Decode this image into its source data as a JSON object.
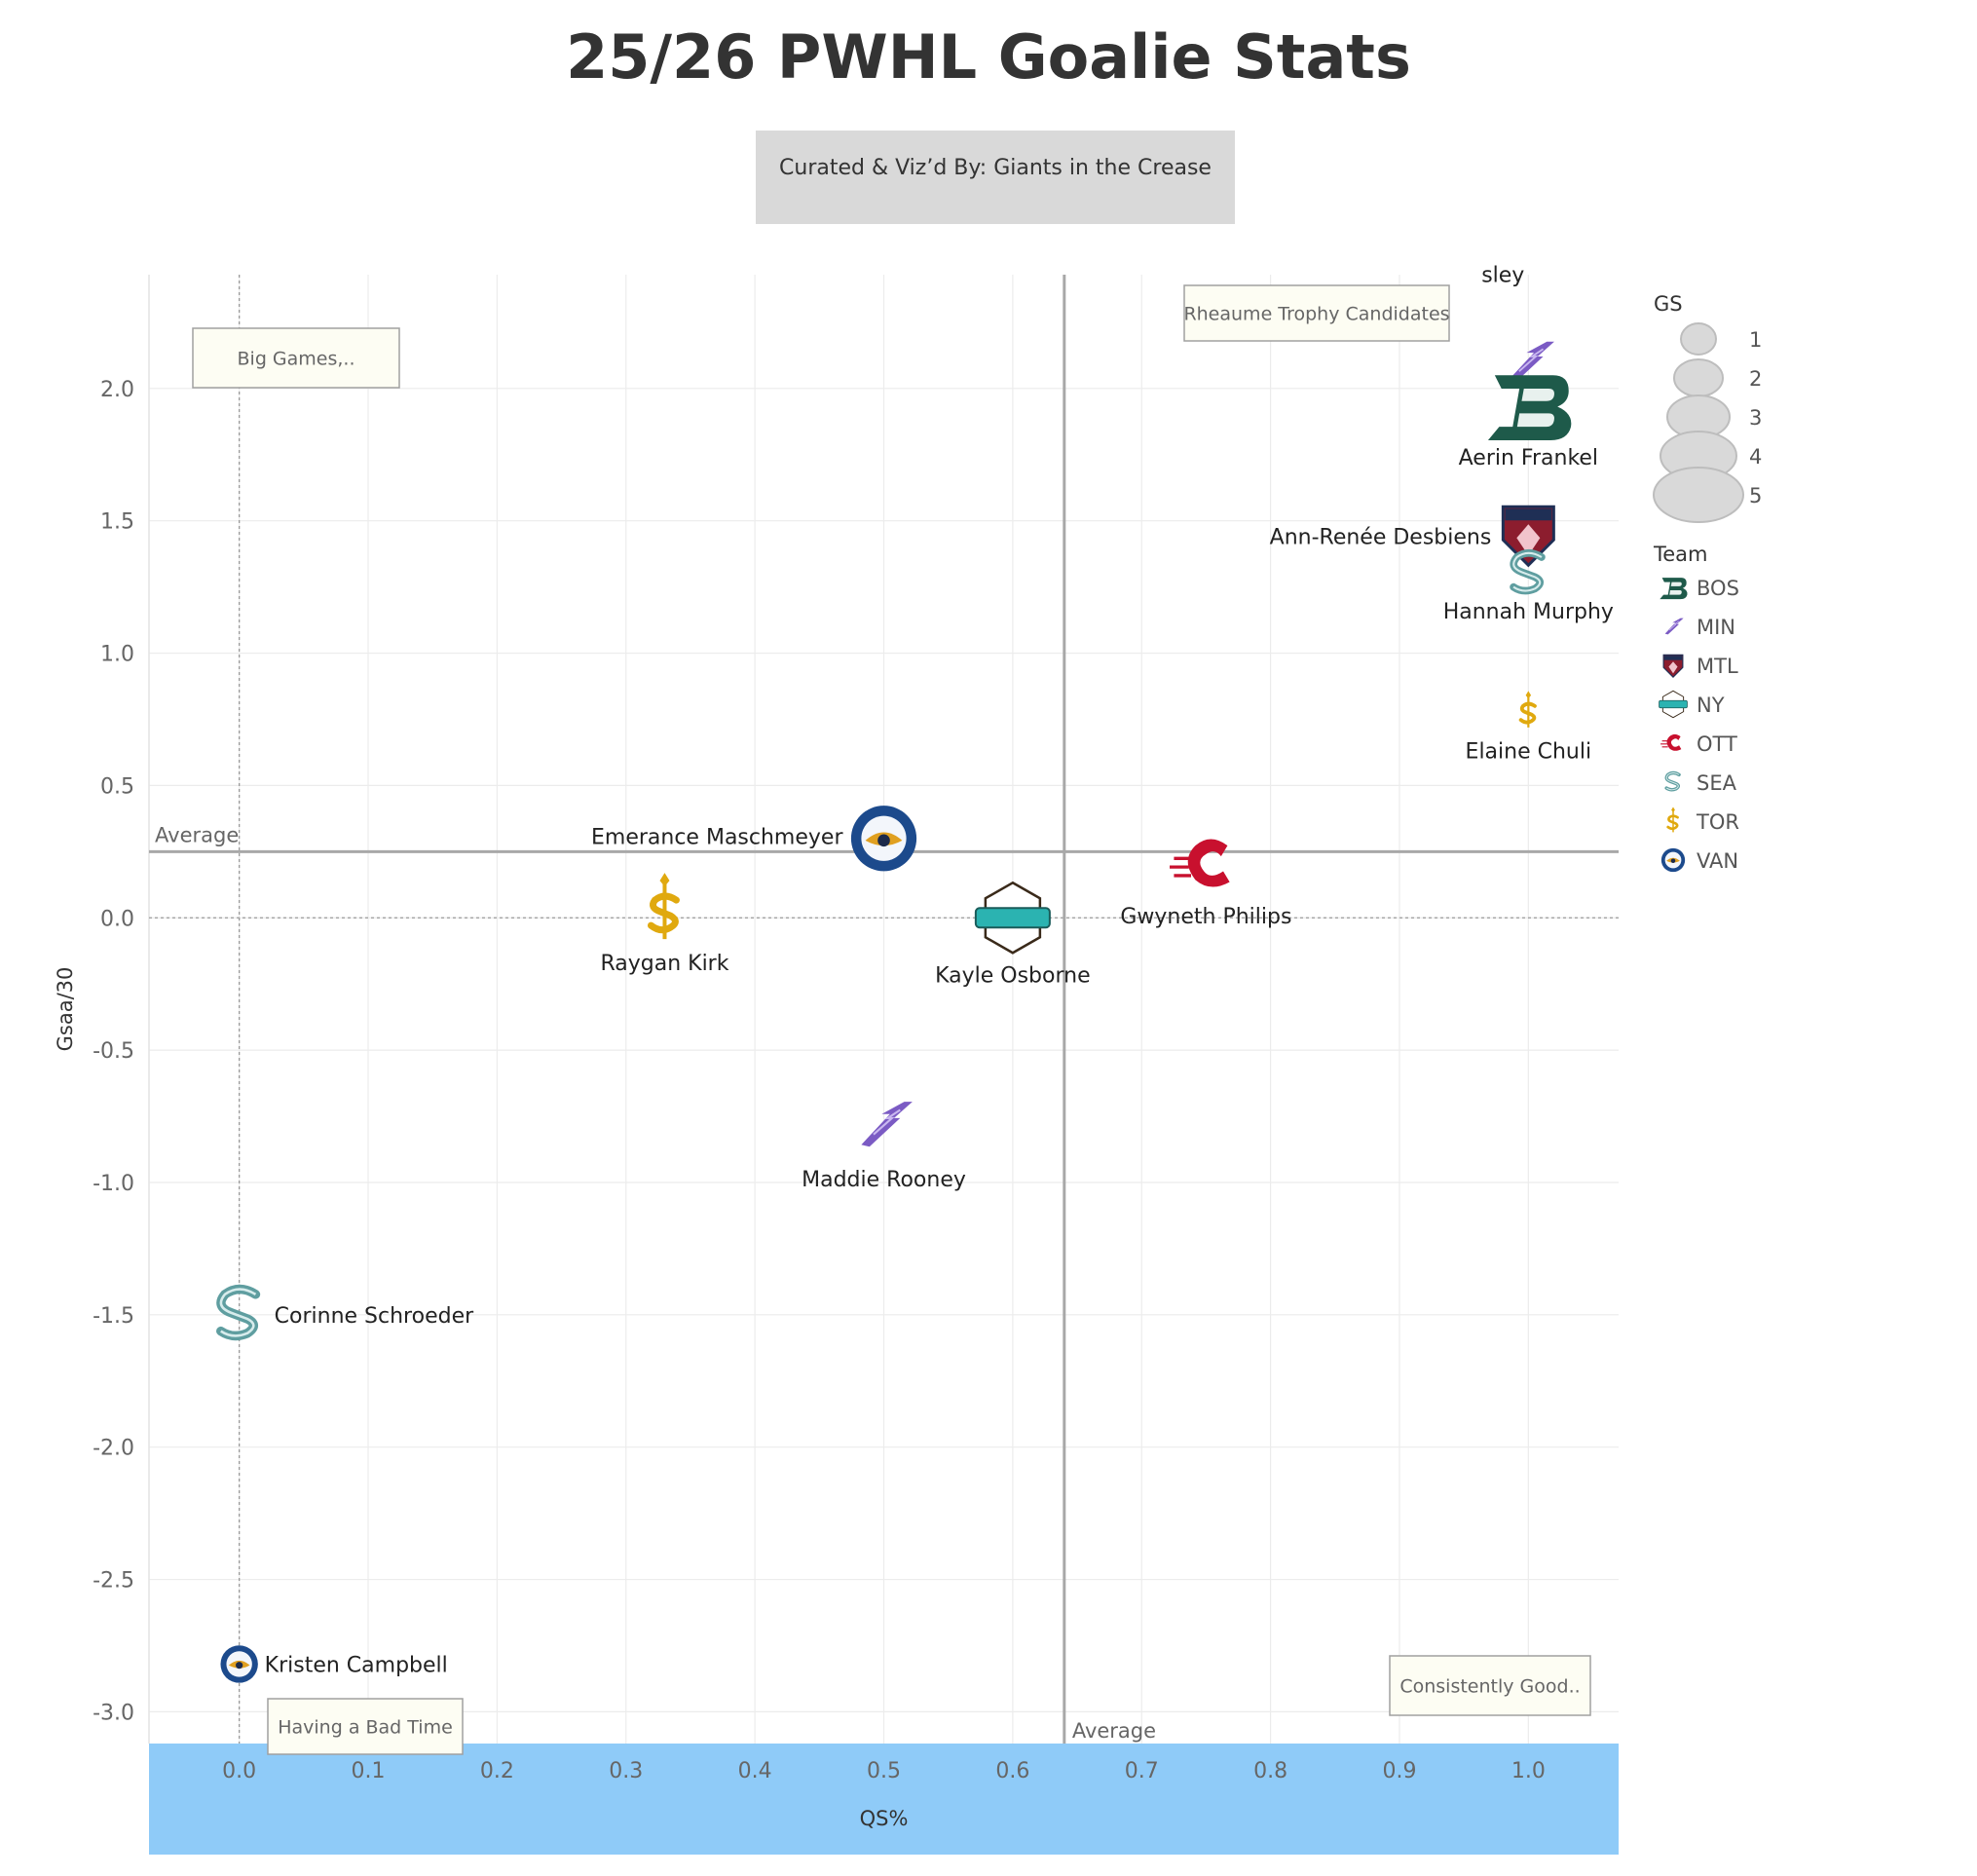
{
  "title": "25/26 PWHL Goalie Stats",
  "credit": "Curated & Viz’d By: Giants in the Crease",
  "colors": {
    "axis_band": "#8fcbf8",
    "note_fill": "#fdfdf3",
    "BOS": "#1e5a4a",
    "MIN": "#7b5bc4",
    "MTL": "#8c1d2e",
    "NY": "#2bb3b1",
    "OTT": "#c8102e",
    "SEA": "#5f9ea0",
    "TOR": "#e0a90f",
    "VAN": "#1c4a8c"
  },
  "chart_data": {
    "type": "scatter",
    "title": "25/26 PWHL Goalie Stats",
    "xlabel": "QS%",
    "ylabel": "Gsaa/30",
    "xlim": [
      -0.07,
      1.07
    ],
    "ylim": [
      -3.12,
      2.43
    ],
    "x_ticks": [
      "0.0",
      "0.1",
      "0.2",
      "0.3",
      "0.4",
      "0.5",
      "0.6",
      "0.7",
      "0.8",
      "0.9",
      "1.0"
    ],
    "y_ticks": [
      "2.0",
      "1.5",
      "1.0",
      "0.5",
      "0.0",
      "-0.5",
      "-1.0",
      "-1.5",
      "-2.0",
      "-2.5",
      "-3.0"
    ],
    "grid": true,
    "reference_lines": [
      {
        "axis": "x",
        "value": 0.64,
        "label": "Average"
      },
      {
        "axis": "y",
        "value": 0.25,
        "label": "Average"
      }
    ],
    "quadrant_labels": {
      "top_left": "Big Games,..",
      "top_right": "Rheaume Trophy Candidates",
      "bottom_left": "Having a Bad Time",
      "bottom_right": "Consistently Good.."
    },
    "points": [
      {
        "name": "Nicole Hensley",
        "display_label": "sley",
        "team": "MIN",
        "x": 1.0,
        "y": 2.1
      },
      {
        "name": "Aerin Frankel",
        "team": "BOS",
        "x": 1.0,
        "y": 1.94
      },
      {
        "name": "Ann-Renée Desbiens",
        "team": "MTL",
        "x": 1.0,
        "y": 1.45
      },
      {
        "name": "Hannah Murphy",
        "team": "SEA",
        "x": 1.0,
        "y": 1.3
      },
      {
        "name": "Elaine Chuli",
        "team": "TOR",
        "x": 1.0,
        "y": 0.78
      },
      {
        "name": "Emerance Maschmeyer",
        "team": "VAN",
        "x": 0.5,
        "y": 0.3
      },
      {
        "name": "Gwyneth Philips",
        "team": "OTT",
        "x": 0.75,
        "y": 0.2
      },
      {
        "name": "Raygan Kirk",
        "team": "TOR",
        "x": 0.33,
        "y": 0.03
      },
      {
        "name": "Kayle Osborne",
        "team": "NY",
        "x": 0.6,
        "y": 0.0
      },
      {
        "name": "Maddie Rooney",
        "team": "MIN",
        "x": 0.5,
        "y": -0.78
      },
      {
        "name": "Corinne Schroeder",
        "team": "SEA",
        "x": 0.0,
        "y": -1.5
      },
      {
        "name": "Kristen Campbell",
        "team": "VAN",
        "x": 0.0,
        "y": -2.82
      }
    ],
    "legend_size": {
      "title": "GS",
      "values": [
        1,
        2,
        3,
        4,
        5
      ]
    },
    "legend_color": {
      "title": "Team",
      "values": [
        "BOS",
        "MIN",
        "MTL",
        "NY",
        "OTT",
        "SEA",
        "TOR",
        "VAN"
      ]
    }
  }
}
